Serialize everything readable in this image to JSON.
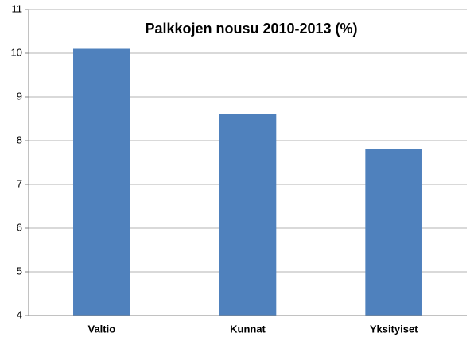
{
  "chart_data": {
    "type": "bar",
    "title": "Palkkojen nousu 2010-2013 (%)",
    "categories": [
      "Valtio",
      "Kunnat",
      "Yksityiset"
    ],
    "values": [
      10.1,
      8.6,
      7.8
    ],
    "color": "#4f81bd",
    "ylim": [
      4,
      11
    ],
    "yticks": [
      4,
      5,
      6,
      7,
      8,
      9,
      10,
      11
    ],
    "grid": true
  }
}
